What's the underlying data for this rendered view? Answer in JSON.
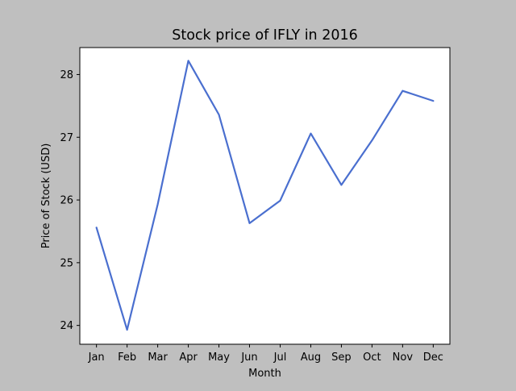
{
  "chart_data": {
    "type": "line",
    "title": "Stock price of IFLY in 2016",
    "xlabel": "Month",
    "ylabel": "Price of Stock (USD)",
    "categories": [
      "Jan",
      "Feb",
      "Mar",
      "Apr",
      "May",
      "Jun",
      "Jul",
      "Aug",
      "Sep",
      "Oct",
      "Nov",
      "Dec"
    ],
    "series": [
      {
        "values": [
          25.56,
          23.93,
          25.93,
          28.22,
          27.36,
          25.63,
          25.99,
          27.06,
          26.24,
          26.95,
          27.74,
          27.58
        ],
        "color": "#4a6fcf"
      }
    ],
    "yticks": [
      24,
      25,
      26,
      27,
      28
    ],
    "ylim": [
      23.7,
      28.43
    ],
    "grid": false,
    "legend": "none",
    "background": "#bfbfbf",
    "plot_background": "#ffffff"
  }
}
